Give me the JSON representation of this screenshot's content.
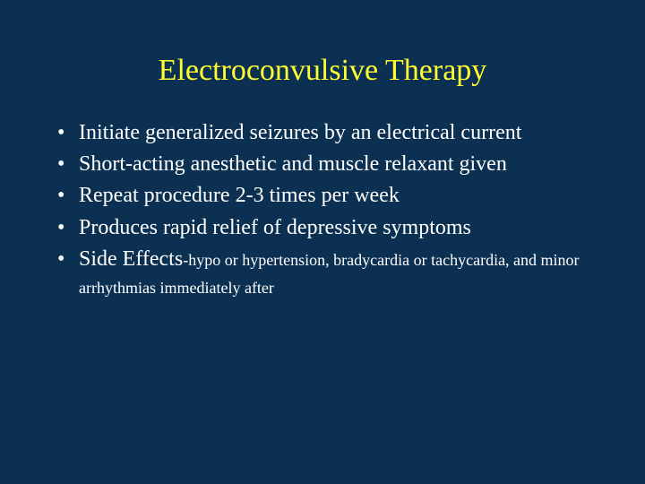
{
  "slide": {
    "background_color": "#0b3052",
    "title": {
      "text": "Electroconvulsive Therapy",
      "color": "#ffff33",
      "fontsize": 34
    },
    "body": {
      "color": "#ffffff",
      "fontsize": 24,
      "bullets": [
        "Initiate generalized seizures by an electrical current",
        "Short-acting anesthetic and muscle relaxant given",
        "Repeat procedure 2-3 times per week",
        "Produces rapid relief of depressive symptoms"
      ],
      "side_effects_label": "Side Effects",
      "side_effects_detail": "-hypo or hypertension, bradycardia or tachycardia, and minor arrhythmias immediately after",
      "side_effects_detail_fontsize": 18
    }
  }
}
